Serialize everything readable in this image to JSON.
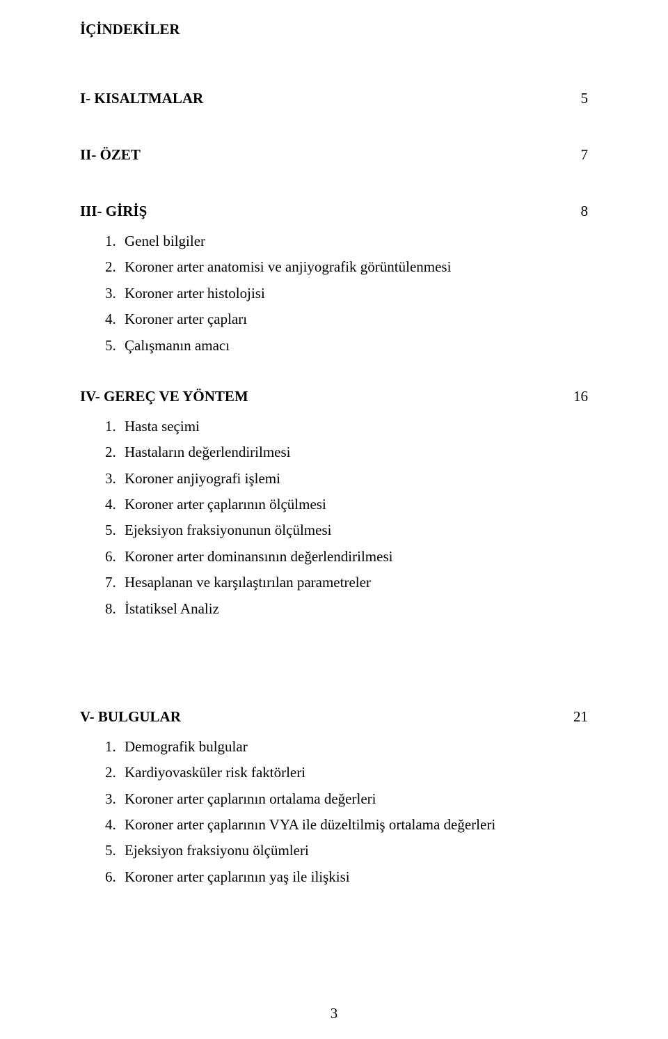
{
  "heading": "İÇİNDEKİLER",
  "sections": [
    {
      "title": "I- KISALTMALAR",
      "page": "5",
      "items": []
    },
    {
      "title": "II- ÖZET",
      "page": "7",
      "items": []
    },
    {
      "title": "III- GİRİŞ",
      "page": "8",
      "items": [
        {
          "n": "1.",
          "t": "Genel bilgiler"
        },
        {
          "n": "2.",
          "t": "Koroner arter anatomisi ve anjiyografik görüntülenmesi"
        },
        {
          "n": "3.",
          "t": "Koroner arter histolojisi"
        },
        {
          "n": "4.",
          "t": "Koroner arter çapları"
        },
        {
          "n": "5.",
          "t": "Çalışmanın amacı"
        }
      ]
    },
    {
      "title": "IV- GEREÇ VE YÖNTEM",
      "page": "16",
      "items": [
        {
          "n": "1.",
          "t": "Hasta seçimi"
        },
        {
          "n": "2.",
          "t": "Hastaların değerlendirilmesi"
        },
        {
          "n": "3.",
          "t": "Koroner anjiyografi işlemi"
        },
        {
          "n": "4.",
          "t": "Koroner arter çaplarının ölçülmesi"
        },
        {
          "n": "5.",
          "t": "Ejeksiyon fraksiyonunun ölçülmesi"
        },
        {
          "n": "6.",
          "t": "Koroner arter dominansının değerlendirilmesi"
        },
        {
          "n": "7.",
          "t": "Hesaplanan ve karşılaştırılan parametreler"
        },
        {
          "n": "8.",
          "t": "İstatiksel Analiz"
        }
      ]
    },
    {
      "title": "V- BULGULAR",
      "page": "21",
      "items": [
        {
          "n": "1.",
          "t": "Demografik bulgular"
        },
        {
          "n": "2.",
          "t": "Kardiyovasküler risk faktörleri"
        },
        {
          "n": "3.",
          "t": "Koroner arter çaplarının ortalama değerleri"
        },
        {
          "n": "4.",
          "t": "Koroner arter çaplarının VYA ile düzeltilmiş ortalama değerleri"
        },
        {
          "n": "5.",
          "t": "Ejeksiyon fraksiyonu ölçümleri"
        },
        {
          "n": "6.",
          "t": "Koroner arter çaplarının yaş ile ilişkisi"
        }
      ]
    }
  ],
  "footer_page": "3"
}
